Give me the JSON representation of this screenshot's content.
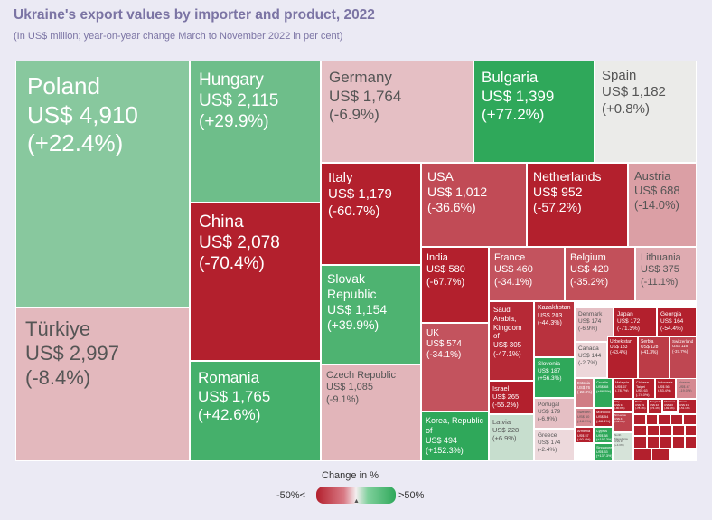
{
  "title": "Ukraine's export values by importer and product, 2022",
  "subtitle": "(In US$ million; year-on-year change March to November 2022 in per cent)",
  "legend": {
    "title": "Change in %",
    "low_label": "-50%<",
    "high_label": ">50%",
    "low_color": "#b3202d",
    "mid_color": "#f4eef0",
    "high_color": "#2fa85a"
  },
  "chart_data": {
    "type": "treemap",
    "unit": "US$ million",
    "change_unit": "%",
    "items": [
      {
        "country": "Poland",
        "value_label": "US$ 4,910",
        "change_label": "(+22.4%)",
        "value": 4910,
        "change": 22.4
      },
      {
        "country": "Türkiye",
        "value_label": "US$ 2,997",
        "change_label": "(-8.4%)",
        "value": 2997,
        "change": -8.4
      },
      {
        "country": "Hungary",
        "value_label": "US$ 2,115",
        "change_label": "(+29.9%)",
        "value": 2115,
        "change": 29.9
      },
      {
        "country": "China",
        "value_label": "US$ 2,078",
        "change_label": "(-70.4%)",
        "value": 2078,
        "change": -70.4
      },
      {
        "country": "Romania",
        "value_label": "US$ 1,765",
        "change_label": "(+42.6%)",
        "value": 1765,
        "change": 42.6
      },
      {
        "country": "Germany",
        "value_label": "US$ 1,764",
        "change_label": "(-6.9%)",
        "value": 1764,
        "change": -6.9
      },
      {
        "country": "Bulgaria",
        "value_label": "US$ 1,399",
        "change_label": "(+77.2%)",
        "value": 1399,
        "change": 77.2
      },
      {
        "country": "Spain",
        "value_label": "US$ 1,182",
        "change_label": "(+0.8%)",
        "value": 1182,
        "change": 0.8
      },
      {
        "country": "Italy",
        "value_label": "US$ 1,179",
        "change_label": "(-60.7%)",
        "value": 1179,
        "change": -60.7
      },
      {
        "country": "Slovak Republic",
        "value_label": "US$ 1,154",
        "change_label": "(+39.9%)",
        "value": 1154,
        "change": 39.9
      },
      {
        "country": "Czech Republic",
        "value_label": "US$ 1,085",
        "change_label": "(-9.1%)",
        "value": 1085,
        "change": -9.1
      },
      {
        "country": "USA",
        "value_label": "US$ 1,012",
        "change_label": "(-36.6%)",
        "value": 1012,
        "change": -36.6
      },
      {
        "country": "Netherlands",
        "value_label": "US$ 952",
        "change_label": "(-57.2%)",
        "value": 952,
        "change": -57.2
      },
      {
        "country": "Austria",
        "value_label": "US$ 688",
        "change_label": "(-14.0%)",
        "value": 688,
        "change": -14.0
      },
      {
        "country": "India",
        "value_label": "US$ 580",
        "change_label": "(-67.7%)",
        "value": 580,
        "change": -67.7
      },
      {
        "country": "France",
        "value_label": "US$ 460",
        "change_label": "(-34.1%)",
        "value": 460,
        "change": -34.1
      },
      {
        "country": "Belgium",
        "value_label": "US$ 420",
        "change_label": "(-35.2%)",
        "value": 420,
        "change": -35.2
      },
      {
        "country": "Lithuania",
        "value_label": "US$ 375",
        "change_label": "(-11.1%)",
        "value": 375,
        "change": -11.1
      },
      {
        "country": "UK",
        "value_label": "US$ 574",
        "change_label": "(-34.1%)",
        "value": 574,
        "change": -34.1
      },
      {
        "country": "Korea, Republic of",
        "value_label": "US$ 494",
        "change_label": "(+152.3%)",
        "value": 494,
        "change": 152.3
      },
      {
        "country": "Saudi Arabia, Kingdom of",
        "value_label": "US$ 305",
        "change_label": "(-47.1%)",
        "value": 305,
        "change": -47.1
      },
      {
        "country": "Kazakhstan",
        "value_label": "US$ 203",
        "change_label": "(-44.3%)",
        "value": 203,
        "change": -44.3
      },
      {
        "country": "Denmark",
        "value_label": "US$ 174",
        "change_label": "(-6.9%)",
        "value": 174,
        "change": -6.9
      },
      {
        "country": "Japan",
        "value_label": "US$ 172",
        "change_label": "(-71.3%)",
        "value": 172,
        "change": -71.3
      },
      {
        "country": "Georgia",
        "value_label": "US$ 164",
        "change_label": "(-54.4%)",
        "value": 164,
        "change": -54.4
      },
      {
        "country": "Slovenia",
        "value_label": "US$ 187",
        "change_label": "(+56.3%)",
        "value": 187,
        "change": 56.3
      },
      {
        "country": "Canada",
        "value_label": "US$ 144",
        "change_label": "(-2.7%)",
        "value": 144,
        "change": -2.7
      },
      {
        "country": "Uzbekistan",
        "value_label": "US$ 133",
        "change_label": "(-63.4%)",
        "value": 133,
        "change": -63.4
      },
      {
        "country": "Serbia",
        "value_label": "US$ 128",
        "change_label": "(-41.3%)",
        "value": 128,
        "change": -41.3
      },
      {
        "country": "Switzerland",
        "value_label": "US$ 116",
        "change_label": "(-37.7%)",
        "value": 116,
        "change": -37.7
      },
      {
        "country": "Israel",
        "value_label": "US$ 265",
        "change_label": "(-55.2%)",
        "value": 265,
        "change": -55.2
      },
      {
        "country": "Portugal",
        "value_label": "US$ 179",
        "change_label": "(-6.9%)",
        "value": 179,
        "change": -6.9
      },
      {
        "country": "Estonia",
        "value_label": "US$ 76",
        "change_label": "(-22.8%)",
        "value": 76,
        "change": -22.8
      },
      {
        "country": "Croatia",
        "value_label": "US$ 68",
        "change_label": "(+86.5%)",
        "value": 68,
        "change": 86.5
      },
      {
        "country": "Malaysia",
        "value_label": "US$ 67",
        "change_label": "(-78.7%)",
        "value": 67,
        "change": -78.7
      },
      {
        "country": "Chinese Taipei",
        "value_label": "US$ 63",
        "change_label": "(-74.0%)",
        "value": 63,
        "change": -74.0
      },
      {
        "country": "Indonesia",
        "value_label": "US$ 56",
        "change_label": "(-83.4%)",
        "value": 56,
        "change": -83.4
      },
      {
        "country": "Norway",
        "value_label": "US$ 47",
        "change_label": "(-19.0%)",
        "value": 47,
        "change": -19.0
      },
      {
        "country": "Latvia",
        "value_label": "US$ 228",
        "change_label": "(+6.9%)",
        "value": 228,
        "change": 6.9
      },
      {
        "country": "Greece",
        "value_label": "US$ 174",
        "change_label": "(-2.4%)",
        "value": 174,
        "change": -2.4
      },
      {
        "country": "Sweden",
        "value_label": "US$ 60",
        "change_label": "(-18.5%)",
        "value": 60,
        "change": -18.5
      },
      {
        "country": "Morocco",
        "value_label": "US$ 54",
        "change_label": "(-68.4%)",
        "value": 54,
        "change": -68.4
      },
      {
        "country": "Cyprus",
        "value_label": "US$ 58",
        "change_label": "(+197.3%)",
        "value": 58,
        "change": 197.3
      },
      {
        "country": "Armenia",
        "value_label": "US$ 57",
        "change_label": "(-60.4%)",
        "value": 57,
        "change": -60.4
      },
      {
        "country": "Singapore",
        "value_label": "US$ 53",
        "change_label": "(+137.3%)",
        "value": 53,
        "change": 137.3
      },
      {
        "country": "Brazil",
        "value_label": "US$ 39",
        "change_label": "(-78.7%)",
        "value": 39,
        "change": -78.7
      },
      {
        "country": "Bangladesh",
        "value_label": "US$ 32",
        "change_label": "(-74.4%)",
        "value": 32,
        "change": -74.4
      },
      {
        "country": "Thailand",
        "value_label": "US$ 30",
        "change_label": "(-82.4%)",
        "value": 30,
        "change": -82.4
      },
      {
        "country": "Oman",
        "value_label": "US$ 31",
        "change_label": "(-51.1%)",
        "value": 31,
        "change": -51.1
      },
      {
        "country": "Italy",
        "value_label": "US$ 34",
        "change_label": "(-80.8%)",
        "value": 34,
        "change": -80.8
      },
      {
        "country": "Sri Lanka",
        "value_label": "US$ 41",
        "change_label": "(-39.1%)",
        "value": 41,
        "change": -39.1
      },
      {
        "country": "North Macedonia",
        "value_label": "US$ 39",
        "change_label": "(+4.0%)",
        "value": 39,
        "change": 4.0
      },
      {
        "country": "",
        "value_label": "",
        "change_label": "",
        "value": 25,
        "change": -70
      },
      {
        "country": "",
        "value_label": "",
        "change_label": "",
        "value": 25,
        "change": -65
      },
      {
        "country": "",
        "value_label": "",
        "change_label": "",
        "value": 22,
        "change": -60
      },
      {
        "country": "",
        "value_label": "",
        "change_label": "",
        "value": 22,
        "change": -72
      },
      {
        "country": "",
        "value_label": "",
        "change_label": "",
        "value": 20,
        "change": -68
      },
      {
        "country": "",
        "value_label": "",
        "change_label": "",
        "value": 20,
        "change": -55
      },
      {
        "country": "",
        "value_label": "",
        "change_label": "",
        "value": 18,
        "change": -75
      },
      {
        "country": "",
        "value_label": "",
        "change_label": "",
        "value": 18,
        "change": -62
      },
      {
        "country": "",
        "value_label": "",
        "change_label": "",
        "value": 16,
        "change": -70
      },
      {
        "country": "",
        "value_label": "",
        "change_label": "",
        "value": 16,
        "change": -58
      },
      {
        "country": "",
        "value_label": "",
        "change_label": "",
        "value": 15,
        "change": -66
      },
      {
        "country": "",
        "value_label": "",
        "change_label": "",
        "value": 15,
        "change": -73
      },
      {
        "country": "",
        "value_label": "",
        "change_label": "",
        "value": 14,
        "change": -61
      },
      {
        "country": "",
        "value_label": "",
        "change_label": "",
        "value": 14,
        "change": -69
      },
      {
        "country": "",
        "value_label": "",
        "change_label": "",
        "value": 13,
        "change": -57
      },
      {
        "country": "",
        "value_label": "",
        "change_label": "",
        "value": 13,
        "change": -71
      },
      {
        "country": "",
        "value_label": "",
        "change_label": "",
        "value": 12,
        "change": -64
      },
      {
        "country": "",
        "value_label": "",
        "change_label": "",
        "value": 12,
        "change": -67
      },
      {
        "country": "",
        "value_label": "",
        "change_label": "",
        "value": 11,
        "change": -59
      },
      {
        "country": "",
        "value_label": "",
        "change_label": "",
        "value": 11,
        "change": -74
      }
    ]
  }
}
